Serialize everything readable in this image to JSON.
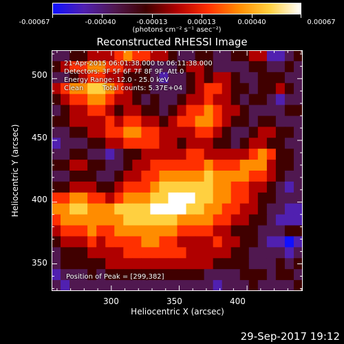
{
  "colorbar": {
    "tick_labels": [
      "-0.00067",
      "-0.00040",
      "-0.00013",
      "0.00013",
      "0.00040",
      "0.00067"
    ],
    "units": "(photons cm⁻² s⁻¹ asec⁻²)",
    "colormap": [
      "#1010ff",
      "#5020b0",
      "#501850",
      "#400000",
      "#b00000",
      "#ff3000",
      "#ff8c00",
      "#ffd040",
      "#ffffff"
    ]
  },
  "title": "Reconstructed RHESSI Image",
  "info": {
    "time_range": "21-Apr-2015 06:01:38.000 to 06:11:38.000",
    "detectors": "Detectors: 3F 5F 6F 7F 8F 9F, Att 0",
    "energy": "Energy Range: 12.0 - 25.0 keV",
    "clean": "Clean",
    "counts": "Total counts: 5.37E+04",
    "peak": "Position of Peak = [299,382]"
  },
  "footer": {
    "date": "29-Sep-2017 19:12"
  },
  "chart_data": {
    "type": "heatmap",
    "title": "Reconstructed RHESSI Image",
    "xlabel": "Heliocentric X (arcsec)",
    "ylabel": "Heliocentric Y (arcsec)",
    "xlim": [
      256,
      441
    ],
    "ylim": [
      328,
      523
    ],
    "xticks": [
      300,
      350,
      400
    ],
    "yticks": [
      350,
      400,
      450,
      500
    ],
    "value_range": [
      -0.00067,
      0.00067
    ],
    "value_units": "photons cm⁻² s⁻¹ asec⁻²",
    "peak": [
      299,
      382
    ],
    "rows_top_to_bottom": [
      "3344555676655433443344552234",
      "4566776655433345543333443343",
      "3345665544432334545543344433",
      "5677887654433334566544344543",
      "4566776554343345565543443233",
      "3455665455443456676554333344",
      "4455556566554566776544344333",
      "3344556677665555665433455443",
      "2333445566665545554434554433",
      "3344332344555556655555676443",
      "4455443345566666676667775443",
      "3344433455667777787777665433",
      "4455544566678888887766554323",
      "6677665677788999887766544333",
      "7788777888899998877665543322",
      "6777777788888877776655443222",
      "5666766777777766665544433344",
      "4555656666776655556554432212",
      "3444555566666665555544333323",
      "3444445555555555554444333434",
      "2333434444444444433334443443",
      "3233333333333333332333433334"
    ]
  }
}
